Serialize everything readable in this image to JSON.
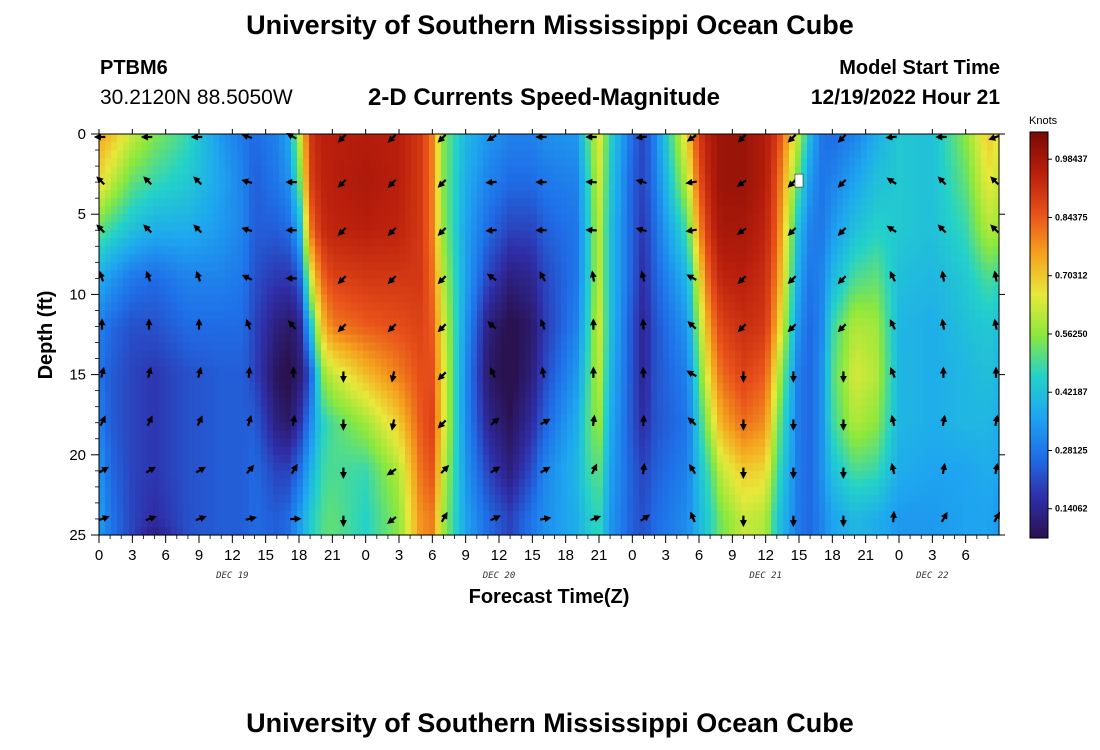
{
  "header": {
    "title": "University of Southern Mississippi Ocean Cube",
    "station_id": "PTBM6",
    "station_coords": "30.2120N  88.5050W",
    "chart_title": "2-D Currents Speed-Magnitude",
    "model_start_label": "Model Start Time",
    "model_start_value": "12/19/2022 Hour 21"
  },
  "footer": {
    "title": "University of Southern Mississippi Ocean Cube"
  },
  "chart_data": {
    "type": "heatmap",
    "title": "2-D Currents Speed-Magnitude",
    "xlabel": "Forecast Time(Z)",
    "ylabel": "Depth (ft)",
    "colorbar_title": "Knots",
    "xlim": [
      0,
      81
    ],
    "ylim": [
      0,
      25
    ],
    "x_tick_labels": [
      "0",
      "3",
      "6",
      "9",
      "12",
      "15",
      "18",
      "21",
      "0",
      "3",
      "6",
      "9",
      "12",
      "15",
      "18",
      "21",
      "0",
      "3",
      "6",
      "9",
      "12",
      "15",
      "18",
      "21",
      "0",
      "3",
      "6"
    ],
    "day_labels": [
      {
        "hour": 12,
        "label": "DEC 19"
      },
      {
        "hour": 36,
        "label": "DEC 20"
      },
      {
        "hour": 60,
        "label": "DEC 21"
      },
      {
        "hour": 75,
        "label": "DEC 22"
      }
    ],
    "y_ticks": [
      0,
      5,
      10,
      15,
      20,
      25
    ],
    "colorbar_ticks": [
      "0.98437",
      "0.84375",
      "0.70312",
      "0.56250",
      "0.42187",
      "0.28125",
      "0.14062"
    ],
    "colorbar_values": [
      0.98437,
      0.84375,
      0.70312,
      0.5625,
      0.42187,
      0.28125,
      0.14062
    ],
    "color_range": [
      0.07,
      1.05
    ],
    "color_stops": [
      "#2a1250",
      "#2f2ea8",
      "#1f6fe8",
      "#1ea6f0",
      "#24d2c8",
      "#8ce83c",
      "#e8e83a",
      "#f5a21e",
      "#e8501a",
      "#b81e0c",
      "#7a0a04"
    ],
    "arrow_hours": [
      0,
      4.5,
      9,
      13.5,
      17.5,
      22,
      26.5,
      31,
      35.5,
      40,
      44.5,
      49,
      53.5,
      58,
      62.5,
      67,
      71.5,
      76,
      81
    ],
    "arrow_depths": [
      0,
      3,
      6,
      9,
      12,
      15,
      18,
      21,
      24
    ],
    "speed_profile": {
      "hours": [
        0,
        1,
        3,
        5,
        8,
        11,
        13,
        14,
        16,
        17,
        18,
        19,
        20,
        21,
        24,
        27,
        29,
        30,
        31,
        33,
        35,
        37,
        39,
        40,
        43,
        44,
        45,
        46,
        48,
        49,
        50,
        53,
        54,
        55,
        56,
        58,
        60,
        61,
        63,
        64,
        65,
        66,
        68,
        70,
        72,
        75,
        78,
        80,
        81
      ],
      "depths": [
        0,
        3,
        6,
        9,
        12,
        15,
        18,
        21,
        24,
        25
      ],
      "values": [
        [
          0.75,
          0.68,
          0.52,
          0.38,
          0.3,
          0.28,
          0.3,
          0.34,
          0.36,
          0.34
        ],
        [
          0.72,
          0.62,
          0.48,
          0.34,
          0.26,
          0.24,
          0.24,
          0.26,
          0.28,
          0.28
        ],
        [
          0.62,
          0.52,
          0.42,
          0.28,
          0.22,
          0.2,
          0.2,
          0.2,
          0.2,
          0.2
        ],
        [
          0.55,
          0.48,
          0.38,
          0.26,
          0.22,
          0.18,
          0.18,
          0.18,
          0.16,
          0.12
        ],
        [
          0.48,
          0.44,
          0.38,
          0.3,
          0.26,
          0.22,
          0.22,
          0.22,
          0.22,
          0.22
        ],
        [
          0.34,
          0.36,
          0.34,
          0.3,
          0.26,
          0.24,
          0.24,
          0.24,
          0.24,
          0.24
        ],
        [
          0.28,
          0.3,
          0.3,
          0.28,
          0.26,
          0.24,
          0.24,
          0.24,
          0.24,
          0.24
        ],
        [
          0.26,
          0.24,
          0.24,
          0.22,
          0.2,
          0.2,
          0.24,
          0.26,
          0.26,
          0.26
        ],
        [
          0.3,
          0.28,
          0.24,
          0.18,
          0.12,
          0.08,
          0.12,
          0.2,
          0.24,
          0.24
        ],
        [
          0.36,
          0.32,
          0.26,
          0.18,
          0.1,
          0.06,
          0.1,
          0.2,
          0.26,
          0.26
        ],
        [
          0.6,
          0.5,
          0.36,
          0.22,
          0.12,
          0.1,
          0.16,
          0.26,
          0.34,
          0.34
        ],
        [
          0.9,
          0.88,
          0.8,
          0.62,
          0.4,
          0.22,
          0.3,
          0.38,
          0.44,
          0.44
        ],
        [
          0.95,
          0.94,
          0.92,
          0.82,
          0.7,
          0.55,
          0.45,
          0.48,
          0.5,
          0.5
        ],
        [
          0.95,
          0.95,
          0.94,
          0.88,
          0.8,
          0.62,
          0.5,
          0.5,
          0.52,
          0.52
        ],
        [
          0.96,
          0.97,
          0.95,
          0.9,
          0.84,
          0.72,
          0.58,
          0.48,
          0.46,
          0.46
        ],
        [
          0.95,
          0.95,
          0.94,
          0.9,
          0.86,
          0.8,
          0.7,
          0.6,
          0.56,
          0.56
        ],
        [
          0.9,
          0.9,
          0.9,
          0.9,
          0.88,
          0.86,
          0.85,
          0.82,
          0.78,
          0.78
        ],
        [
          0.8,
          0.8,
          0.8,
          0.82,
          0.84,
          0.86,
          0.88,
          0.85,
          0.8,
          0.8
        ],
        [
          0.55,
          0.55,
          0.56,
          0.6,
          0.64,
          0.66,
          0.66,
          0.62,
          0.58,
          0.58
        ],
        [
          0.4,
          0.38,
          0.36,
          0.36,
          0.34,
          0.32,
          0.32,
          0.34,
          0.36,
          0.36
        ],
        [
          0.34,
          0.3,
          0.26,
          0.2,
          0.12,
          0.1,
          0.14,
          0.2,
          0.26,
          0.26
        ],
        [
          0.3,
          0.26,
          0.2,
          0.12,
          0.06,
          0.05,
          0.08,
          0.12,
          0.2,
          0.2
        ],
        [
          0.3,
          0.26,
          0.2,
          0.14,
          0.1,
          0.12,
          0.16,
          0.22,
          0.28,
          0.28
        ],
        [
          0.32,
          0.28,
          0.24,
          0.2,
          0.18,
          0.2,
          0.24,
          0.3,
          0.32,
          0.32
        ],
        [
          0.34,
          0.3,
          0.28,
          0.28,
          0.3,
          0.34,
          0.38,
          0.4,
          0.38,
          0.38
        ],
        [
          0.5,
          0.46,
          0.44,
          0.44,
          0.46,
          0.48,
          0.5,
          0.48,
          0.44,
          0.44
        ],
        [
          0.66,
          0.64,
          0.62,
          0.62,
          0.64,
          0.62,
          0.58,
          0.52,
          0.48,
          0.48
        ],
        [
          0.46,
          0.44,
          0.42,
          0.42,
          0.42,
          0.4,
          0.38,
          0.36,
          0.34,
          0.34
        ],
        [
          0.26,
          0.24,
          0.24,
          0.24,
          0.22,
          0.22,
          0.22,
          0.24,
          0.24,
          0.24
        ],
        [
          0.2,
          0.2,
          0.18,
          0.16,
          0.14,
          0.14,
          0.16,
          0.2,
          0.22,
          0.22
        ],
        [
          0.3,
          0.28,
          0.26,
          0.24,
          0.22,
          0.22,
          0.22,
          0.24,
          0.26,
          0.26
        ],
        [
          0.7,
          0.62,
          0.5,
          0.4,
          0.34,
          0.3,
          0.28,
          0.3,
          0.32,
          0.32
        ],
        [
          0.9,
          0.85,
          0.78,
          0.66,
          0.58,
          0.52,
          0.46,
          0.42,
          0.4,
          0.4
        ],
        [
          0.96,
          0.95,
          0.92,
          0.86,
          0.78,
          0.7,
          0.6,
          0.5,
          0.46,
          0.46
        ],
        [
          1.0,
          1.0,
          0.98,
          0.94,
          0.88,
          0.82,
          0.74,
          0.62,
          0.54,
          0.54
        ],
        [
          1.0,
          1.0,
          0.98,
          0.95,
          0.92,
          0.88,
          0.82,
          0.7,
          0.62,
          0.62
        ],
        [
          0.96,
          0.96,
          0.94,
          0.92,
          0.9,
          0.84,
          0.78,
          0.68,
          0.6,
          0.6
        ],
        [
          0.9,
          0.86,
          0.84,
          0.8,
          0.74,
          0.64,
          0.56,
          0.5,
          0.44,
          0.44
        ],
        [
          0.6,
          0.5,
          0.4,
          0.36,
          0.32,
          0.28,
          0.28,
          0.28,
          0.28,
          0.28
        ],
        [
          0.4,
          0.34,
          0.3,
          0.28,
          0.26,
          0.26,
          0.26,
          0.26,
          0.26,
          0.26
        ],
        [
          0.28,
          0.28,
          0.28,
          0.3,
          0.3,
          0.32,
          0.32,
          0.32,
          0.3,
          0.3
        ],
        [
          0.26,
          0.3,
          0.34,
          0.4,
          0.48,
          0.5,
          0.48,
          0.42,
          0.36,
          0.36
        ],
        [
          0.3,
          0.36,
          0.42,
          0.5,
          0.6,
          0.64,
          0.6,
          0.5,
          0.4,
          0.4
        ],
        [
          0.38,
          0.42,
          0.46,
          0.52,
          0.58,
          0.6,
          0.56,
          0.48,
          0.38,
          0.38
        ],
        [
          0.44,
          0.44,
          0.44,
          0.42,
          0.4,
          0.4,
          0.4,
          0.38,
          0.34,
          0.34
        ],
        [
          0.42,
          0.42,
          0.42,
          0.4,
          0.38,
          0.38,
          0.38,
          0.36,
          0.34,
          0.34
        ],
        [
          0.56,
          0.52,
          0.48,
          0.44,
          0.42,
          0.4,
          0.4,
          0.36,
          0.36,
          0.36
        ],
        [
          0.7,
          0.66,
          0.6,
          0.5,
          0.44,
          0.42,
          0.4,
          0.38,
          0.36,
          0.36
        ],
        [
          0.66,
          0.62,
          0.58,
          0.48,
          0.42,
          0.4,
          0.38,
          0.36,
          0.34,
          0.34
        ]
      ]
    },
    "direction_profile": {
      "hours": [
        0,
        9,
        16,
        18,
        21,
        26,
        28,
        31,
        36,
        40,
        44,
        48,
        52,
        57,
        60,
        64,
        68,
        72,
        76,
        81
      ],
      "rows": [
        {
          "depth": 0,
          "angles": [
            180,
            180,
            150,
            150,
            225,
            225,
            225,
            225,
            210,
            180,
            180,
            180,
            210,
            225,
            225,
            225,
            225,
            180,
            180,
            200
          ]
        },
        {
          "depth": 3,
          "angles": [
            135,
            135,
            180,
            180,
            225,
            225,
            225,
            225,
            180,
            180,
            180,
            160,
            180,
            210,
            225,
            225,
            225,
            135,
            135,
            135
          ]
        },
        {
          "depth": 6,
          "angles": [
            135,
            135,
            180,
            180,
            225,
            225,
            225,
            225,
            180,
            180,
            180,
            160,
            180,
            210,
            225,
            225,
            225,
            135,
            135,
            135
          ]
        },
        {
          "depth": 9,
          "angles": [
            110,
            110,
            180,
            180,
            225,
            225,
            225,
            225,
            135,
            120,
            100,
            100,
            120,
            225,
            225,
            225,
            225,
            100,
            100,
            100
          ]
        },
        {
          "depth": 12,
          "angles": [
            90,
            90,
            120,
            135,
            225,
            225,
            225,
            225,
            130,
            110,
            90,
            90,
            100,
            225,
            225,
            225,
            225,
            100,
            100,
            100
          ]
        },
        {
          "depth": 15,
          "angles": [
            75,
            75,
            90,
            90,
            270,
            270,
            225,
            225,
            100,
            100,
            90,
            90,
            100,
            270,
            270,
            270,
            270,
            90,
            90,
            90
          ]
        },
        {
          "depth": 18,
          "angles": [
            65,
            65,
            80,
            80,
            270,
            270,
            225,
            225,
            20,
            30,
            80,
            90,
            80,
            270,
            270,
            270,
            270,
            80,
            80,
            80
          ]
        },
        {
          "depth": 21,
          "angles": [
            30,
            30,
            60,
            60,
            270,
            270,
            45,
            45,
            30,
            30,
            60,
            90,
            60,
            270,
            270,
            270,
            270,
            80,
            80,
            80
          ]
        },
        {
          "depth": 24,
          "angles": [
            20,
            20,
            10,
            0,
            270,
            270,
            60,
            60,
            20,
            10,
            20,
            30,
            45,
            270,
            270,
            270,
            270,
            60,
            60,
            60
          ]
        }
      ]
    },
    "marker": {
      "hour": 63,
      "depth": 3
    }
  }
}
